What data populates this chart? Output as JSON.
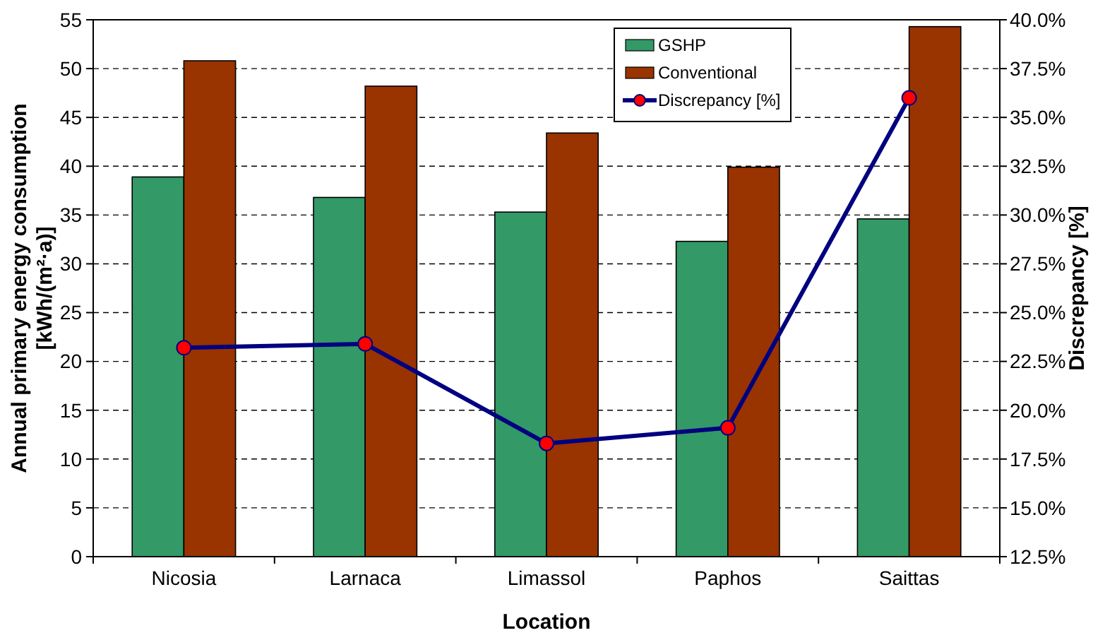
{
  "chart_data": {
    "type": "bar",
    "xlabel": "Location",
    "ylabel": "Annual primary energy consumption\n[kWh/(m²·a)]",
    "y2label": "Discrepancy [%]",
    "categories": [
      "Nicosia",
      "Larnaca",
      "Limassol",
      "Paphos",
      "Saittas"
    ],
    "series": [
      {
        "name": "GSHP",
        "color": "#339966",
        "values": [
          38.9,
          36.8,
          35.3,
          32.3,
          34.6
        ]
      },
      {
        "name": "Conventional",
        "color": "#993300",
        "values": [
          50.8,
          48.2,
          43.4,
          39.9,
          54.3
        ]
      },
      {
        "name": "Discrepancy [%]",
        "type": "line",
        "axis": "y2",
        "color": "#000080",
        "marker": "circle",
        "values": [
          23.2,
          23.4,
          18.3,
          19.1,
          36.0
        ]
      }
    ],
    "ylim": [
      0,
      55
    ],
    "yticks": [
      0,
      5,
      10,
      15,
      20,
      25,
      30,
      35,
      40,
      45,
      50,
      55
    ],
    "y2lim": [
      12.5,
      40
    ],
    "y2ticks": [
      {
        "value": 12.5,
        "label": "12.5%"
      },
      {
        "value": 15,
        "label": "15.0%"
      },
      {
        "value": 17.5,
        "label": "17.5%"
      },
      {
        "value": 20,
        "label": "20.0%"
      },
      {
        "value": 22.5,
        "label": "22.5%"
      },
      {
        "value": 25,
        "label": "25.0%"
      },
      {
        "value": 27.5,
        "label": "27.5%"
      },
      {
        "value": 30,
        "label": "30.0%"
      },
      {
        "value": 32.5,
        "label": "32.5%"
      },
      {
        "value": 35,
        "label": "35.0%"
      },
      {
        "value": 37.5,
        "label": "37.5%"
      },
      {
        "value": 40,
        "label": "40.0%"
      }
    ],
    "grid": "y",
    "legend": "top right",
    "line_style": "solid"
  }
}
